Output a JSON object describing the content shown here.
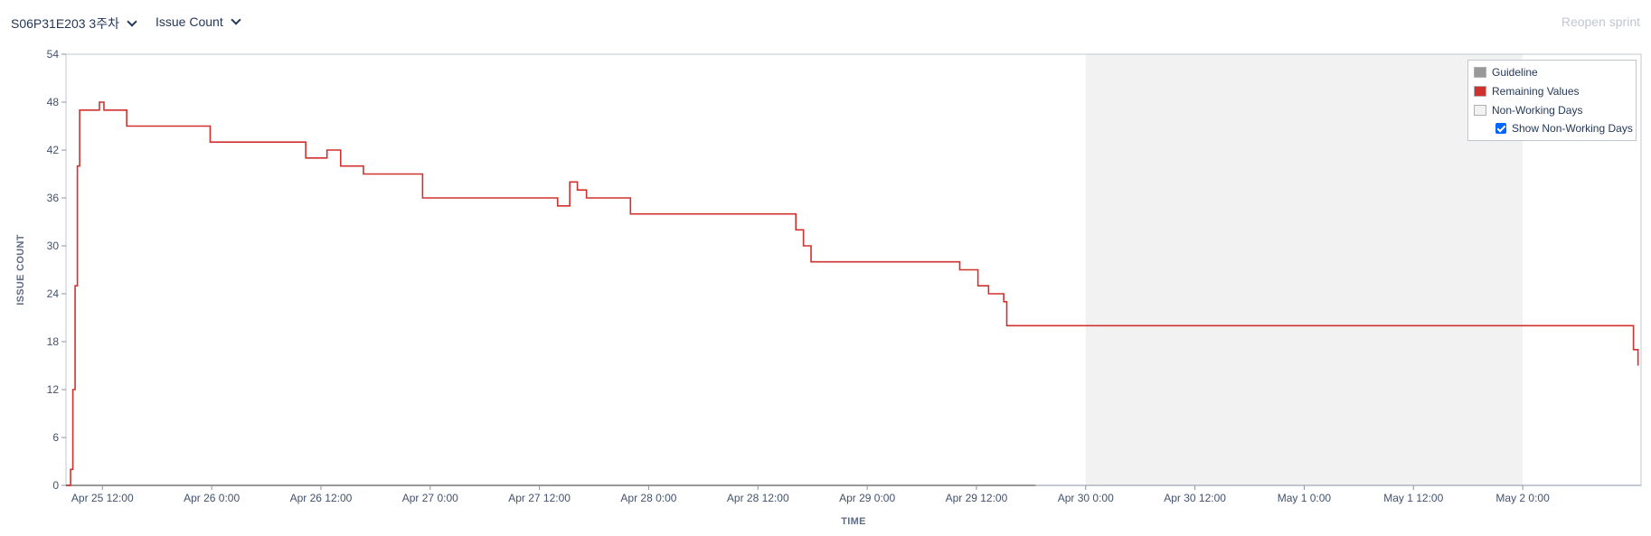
{
  "header": {
    "sprint_selector": "S06P31E203 3주차",
    "metric_selector": "Issue Count",
    "reopen_label": "Reopen sprint"
  },
  "legend": {
    "guideline": "Guideline",
    "remaining": "Remaining Values",
    "non_working": "Non-Working Days",
    "show_non_working": "Show Non-Working Days"
  },
  "colors": {
    "remaining": "#d0312d",
    "guideline": "#999999",
    "non_working": "#f2f2f2"
  },
  "chart_data": {
    "type": "line",
    "xlabel": "TIME",
    "ylabel": "ISSUE COUNT",
    "ylim": [
      0,
      54
    ],
    "yticks": [
      0,
      6,
      12,
      18,
      24,
      30,
      36,
      42,
      48,
      54
    ],
    "xlim": [
      "2023-04-25 08:00",
      "2023-05-02 13:00"
    ],
    "xticks": [
      {
        "t": "2023-04-25 12:00",
        "label": "Apr 25 12:00"
      },
      {
        "t": "2023-04-26 00:00",
        "label": "Apr 26 0:00"
      },
      {
        "t": "2023-04-26 12:00",
        "label": "Apr 26 12:00"
      },
      {
        "t": "2023-04-27 00:00",
        "label": "Apr 27 0:00"
      },
      {
        "t": "2023-04-27 12:00",
        "label": "Apr 27 12:00"
      },
      {
        "t": "2023-04-28 00:00",
        "label": "Apr 28 0:00"
      },
      {
        "t": "2023-04-28 12:00",
        "label": "Apr 28 12:00"
      },
      {
        "t": "2023-04-29 00:00",
        "label": "Apr 29 0:00"
      },
      {
        "t": "2023-04-29 12:00",
        "label": "Apr 29 12:00"
      },
      {
        "t": "2023-04-30 00:00",
        "label": "Apr 30 0:00"
      },
      {
        "t": "2023-04-30 12:00",
        "label": "Apr 30 12:00"
      },
      {
        "t": "2023-05-01 00:00",
        "label": "May 1 0:00"
      },
      {
        "t": "2023-05-01 12:00",
        "label": "May 1 12:00"
      },
      {
        "t": "2023-05-02 00:00",
        "label": "May 2 0:00"
      }
    ],
    "non_working_range": [
      "2023-04-30 00:00",
      "2023-05-02 00:00"
    ],
    "guideline": [
      {
        "t": "2023-04-25 08:00",
        "y": 0
      },
      {
        "t": "2023-04-29 18:30",
        "y": 0
      }
    ],
    "series": [
      {
        "name": "Remaining Values",
        "step": true,
        "points": [
          {
            "t": "2023-04-25 08:00",
            "y": 0
          },
          {
            "t": "2023-04-25 08:30",
            "y": 2
          },
          {
            "t": "2023-04-25 08:45",
            "y": 12
          },
          {
            "t": "2023-04-25 09:00",
            "y": 25
          },
          {
            "t": "2023-04-25 09:15",
            "y": 40
          },
          {
            "t": "2023-04-25 09:30",
            "y": 47
          },
          {
            "t": "2023-04-25 11:40",
            "y": 48
          },
          {
            "t": "2023-04-25 12:10",
            "y": 47
          },
          {
            "t": "2023-04-25 14:40",
            "y": 45
          },
          {
            "t": "2023-04-25 23:50",
            "y": 43
          },
          {
            "t": "2023-04-26 10:20",
            "y": 41
          },
          {
            "t": "2023-04-26 12:40",
            "y": 42
          },
          {
            "t": "2023-04-26 14:10",
            "y": 40
          },
          {
            "t": "2023-04-26 16:40",
            "y": 39
          },
          {
            "t": "2023-04-26 23:10",
            "y": 36
          },
          {
            "t": "2023-04-27 14:00",
            "y": 35
          },
          {
            "t": "2023-04-27 15:20",
            "y": 38
          },
          {
            "t": "2023-04-27 16:10",
            "y": 37
          },
          {
            "t": "2023-04-27 17:10",
            "y": 36
          },
          {
            "t": "2023-04-27 22:00",
            "y": 34
          },
          {
            "t": "2023-04-28 16:10",
            "y": 32
          },
          {
            "t": "2023-04-28 17:00",
            "y": 30
          },
          {
            "t": "2023-04-28 17:50",
            "y": 28
          },
          {
            "t": "2023-04-29 10:10",
            "y": 27
          },
          {
            "t": "2023-04-29 12:10",
            "y": 25
          },
          {
            "t": "2023-04-29 13:20",
            "y": 24
          },
          {
            "t": "2023-04-29 15:00",
            "y": 23
          },
          {
            "t": "2023-04-29 15:20",
            "y": 20
          },
          {
            "t": "2023-05-02 12:10",
            "y": 17
          },
          {
            "t": "2023-05-02 12:40",
            "y": 15
          }
        ]
      }
    ]
  }
}
